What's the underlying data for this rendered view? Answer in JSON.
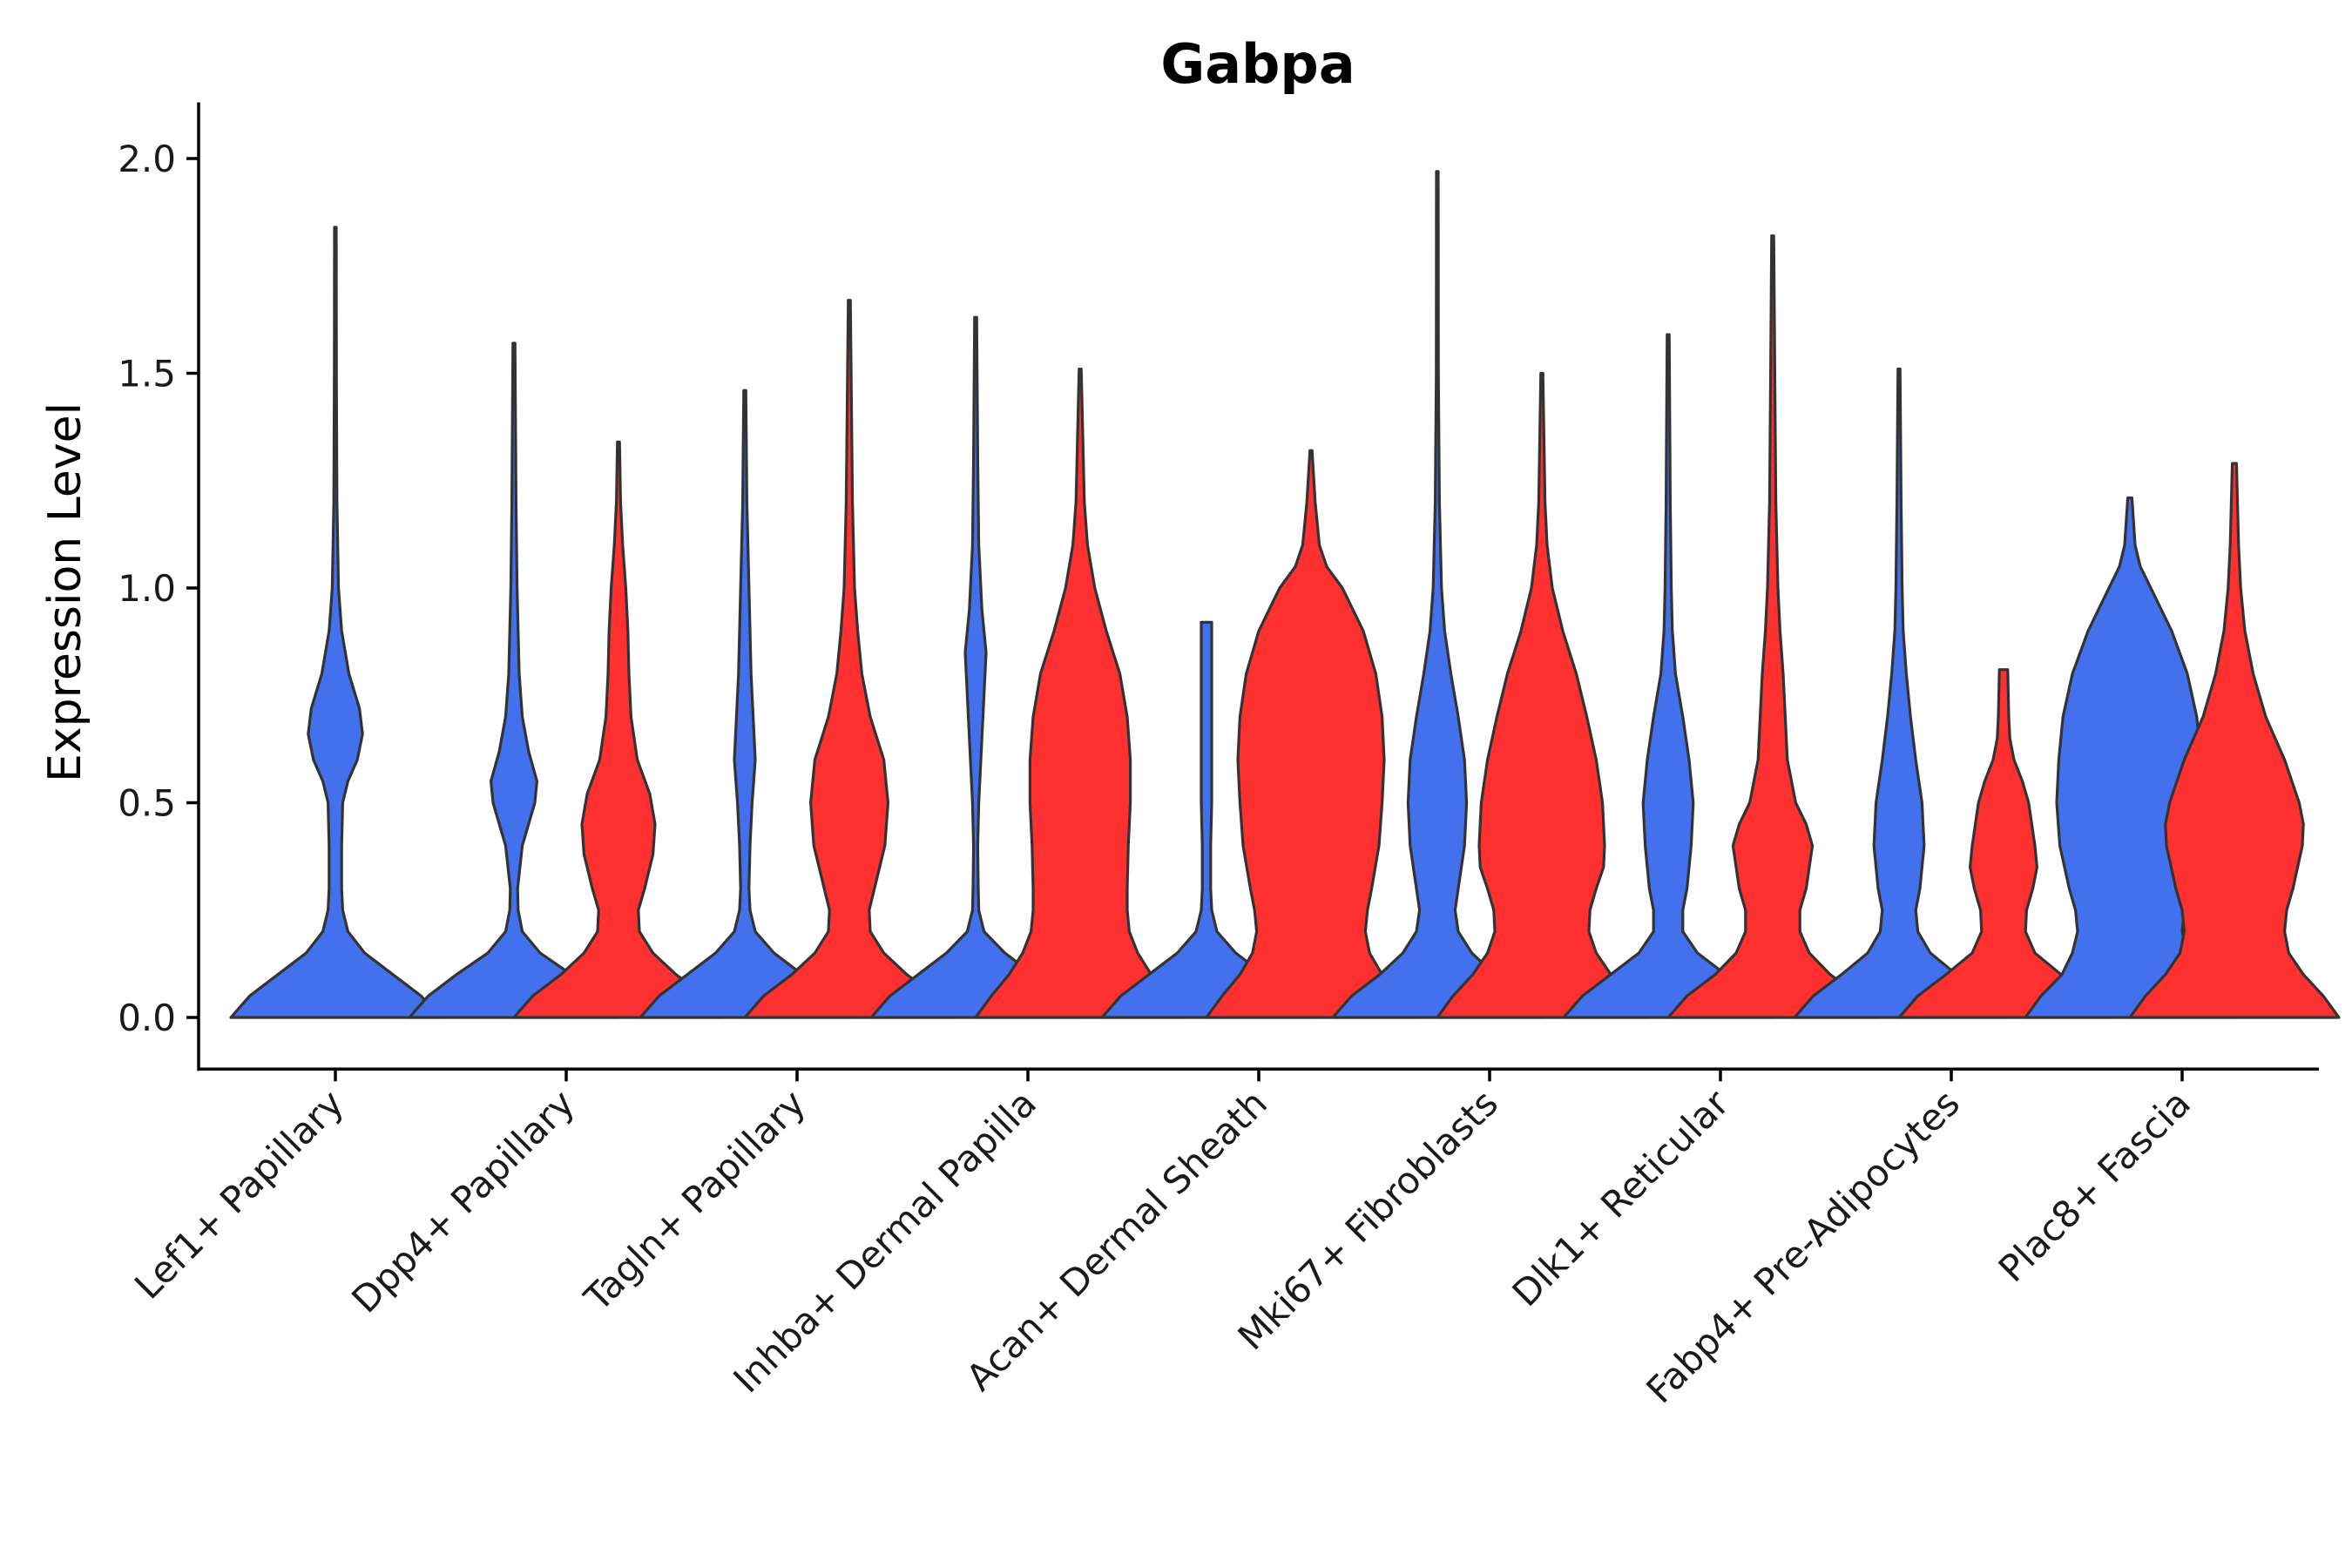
{
  "chart_data": {
    "type": "violin",
    "title": "Gabpa",
    "xlabel": "",
    "ylabel": "Expression Level",
    "ylim": [
      -0.1,
      2.07
    ],
    "yticks": [
      0.0,
      0.5,
      1.0,
      1.5,
      2.0
    ],
    "ytick_labels": [
      "0.0",
      "0.5",
      "1.0",
      "1.5",
      "2.0"
    ],
    "grid": false,
    "colors": {
      "group1": "#4370EC",
      "group2": "#FF3030"
    },
    "categories": [
      "Lef1+ Papillary",
      "Dpp4+ Papillary",
      "Tagln+ Papillary",
      "Inhba+ Dermal Papilla",
      "Acan+ Dermal Sheath",
      "Mki67+ Fibroblasts",
      "Dlk1+ Reticular",
      "Fabp4+ Pre-Adipocytes",
      "Plac8+ Fascia"
    ],
    "series": [
      {
        "name": "group1",
        "max": [
          1.84,
          1.57,
          1.46,
          1.63,
          0.92,
          1.97,
          1.59,
          1.51,
          1.21
        ]
      },
      {
        "name": "group2",
        "max": [
          null,
          1.34,
          1.67,
          1.51,
          1.32,
          1.5,
          1.82,
          0.81,
          1.29
        ]
      }
    ],
    "density_profiles": {
      "group1": [
        [
          [
            0,
            1.0
          ],
          [
            0.05,
            0.82
          ],
          [
            0.1,
            0.55
          ],
          [
            0.15,
            0.28
          ],
          [
            0.2,
            0.12
          ],
          [
            0.25,
            0.07
          ],
          [
            0.3,
            0.06
          ],
          [
            0.4,
            0.06
          ],
          [
            0.5,
            0.07
          ],
          [
            0.55,
            0.12
          ],
          [
            0.6,
            0.21
          ],
          [
            0.66,
            0.26
          ],
          [
            0.72,
            0.23
          ],
          [
            0.8,
            0.13
          ],
          [
            0.9,
            0.06
          ],
          [
            1.0,
            0.03
          ],
          [
            1.2,
            0.015
          ],
          [
            1.5,
            0.01
          ],
          [
            1.84,
            0.008
          ]
        ],
        [
          [
            0,
            1.0
          ],
          [
            0.05,
            0.82
          ],
          [
            0.1,
            0.55
          ],
          [
            0.15,
            0.25
          ],
          [
            0.2,
            0.08
          ],
          [
            0.25,
            0.04
          ],
          [
            0.3,
            0.035
          ],
          [
            0.4,
            0.08
          ],
          [
            0.5,
            0.2
          ],
          [
            0.55,
            0.22
          ],
          [
            0.62,
            0.14
          ],
          [
            0.7,
            0.08
          ],
          [
            0.8,
            0.05
          ],
          [
            1.0,
            0.03
          ],
          [
            1.2,
            0.02
          ],
          [
            1.57,
            0.01
          ]
        ],
        [
          [
            0,
            1.0
          ],
          [
            0.05,
            0.82
          ],
          [
            0.1,
            0.55
          ],
          [
            0.15,
            0.28
          ],
          [
            0.2,
            0.1
          ],
          [
            0.25,
            0.05
          ],
          [
            0.3,
            0.04
          ],
          [
            0.4,
            0.05
          ],
          [
            0.5,
            0.07
          ],
          [
            0.6,
            0.1
          ],
          [
            0.7,
            0.08
          ],
          [
            0.8,
            0.06
          ],
          [
            1.0,
            0.04
          ],
          [
            1.2,
            0.02
          ],
          [
            1.46,
            0.01
          ]
        ],
        [
          [
            0,
            1.0
          ],
          [
            0.05,
            0.82
          ],
          [
            0.1,
            0.55
          ],
          [
            0.15,
            0.28
          ],
          [
            0.2,
            0.08
          ],
          [
            0.25,
            0.03
          ],
          [
            0.3,
            0.025
          ],
          [
            0.4,
            0.02
          ],
          [
            0.5,
            0.03
          ],
          [
            0.6,
            0.05
          ],
          [
            0.7,
            0.07
          ],
          [
            0.85,
            0.1
          ],
          [
            0.95,
            0.06
          ],
          [
            1.1,
            0.03
          ],
          [
            1.3,
            0.02
          ],
          [
            1.63,
            0.01
          ]
        ],
        [
          [
            0,
            1.0
          ],
          [
            0.05,
            0.82
          ],
          [
            0.1,
            0.55
          ],
          [
            0.15,
            0.28
          ],
          [
            0.2,
            0.1
          ],
          [
            0.25,
            0.05
          ],
          [
            0.3,
            0.04
          ],
          [
            0.4,
            0.04
          ],
          [
            0.5,
            0.05
          ],
          [
            0.6,
            0.05
          ],
          [
            0.7,
            0.05
          ],
          [
            0.8,
            0.05
          ],
          [
            0.9,
            0.05
          ],
          [
            0.92,
            0.05
          ]
        ],
        [
          [
            0,
            1.0
          ],
          [
            0.05,
            0.82
          ],
          [
            0.1,
            0.55
          ],
          [
            0.15,
            0.33
          ],
          [
            0.2,
            0.2
          ],
          [
            0.25,
            0.17
          ],
          [
            0.3,
            0.2
          ],
          [
            0.4,
            0.26
          ],
          [
            0.5,
            0.28
          ],
          [
            0.6,
            0.26
          ],
          [
            0.7,
            0.2
          ],
          [
            0.8,
            0.13
          ],
          [
            0.9,
            0.07
          ],
          [
            1.0,
            0.04
          ],
          [
            1.2,
            0.02
          ],
          [
            1.5,
            0.01
          ],
          [
            1.97,
            0.008
          ]
        ],
        [
          [
            0,
            1.0
          ],
          [
            0.05,
            0.82
          ],
          [
            0.1,
            0.55
          ],
          [
            0.15,
            0.28
          ],
          [
            0.2,
            0.14
          ],
          [
            0.25,
            0.14
          ],
          [
            0.3,
            0.18
          ],
          [
            0.4,
            0.22
          ],
          [
            0.5,
            0.24
          ],
          [
            0.6,
            0.2
          ],
          [
            0.7,
            0.14
          ],
          [
            0.8,
            0.07
          ],
          [
            0.9,
            0.04
          ],
          [
            1.0,
            0.03
          ],
          [
            1.2,
            0.02
          ],
          [
            1.59,
            0.01
          ]
        ],
        [
          [
            0,
            1.0
          ],
          [
            0.05,
            0.82
          ],
          [
            0.1,
            0.55
          ],
          [
            0.15,
            0.3
          ],
          [
            0.2,
            0.18
          ],
          [
            0.25,
            0.16
          ],
          [
            0.3,
            0.2
          ],
          [
            0.4,
            0.24
          ],
          [
            0.5,
            0.22
          ],
          [
            0.6,
            0.16
          ],
          [
            0.7,
            0.11
          ],
          [
            0.8,
            0.07
          ],
          [
            0.9,
            0.04
          ],
          [
            1.0,
            0.03
          ],
          [
            1.2,
            0.02
          ],
          [
            1.51,
            0.01
          ]
        ],
        [
          [
            0,
            1.0
          ],
          [
            0.05,
            0.85
          ],
          [
            0.1,
            0.65
          ],
          [
            0.15,
            0.55
          ],
          [
            0.2,
            0.5
          ],
          [
            0.25,
            0.52
          ],
          [
            0.3,
            0.58
          ],
          [
            0.4,
            0.67
          ],
          [
            0.5,
            0.7
          ],
          [
            0.6,
            0.68
          ],
          [
            0.7,
            0.64
          ],
          [
            0.8,
            0.55
          ],
          [
            0.9,
            0.4
          ],
          [
            1.0,
            0.2
          ],
          [
            1.05,
            0.1
          ],
          [
            1.1,
            0.05
          ],
          [
            1.21,
            0.02
          ]
        ]
      ],
      "group2": [
        null,
        [
          [
            0,
            1.0
          ],
          [
            0.05,
            0.82
          ],
          [
            0.1,
            0.55
          ],
          [
            0.15,
            0.33
          ],
          [
            0.2,
            0.2
          ],
          [
            0.25,
            0.19
          ],
          [
            0.3,
            0.25
          ],
          [
            0.38,
            0.33
          ],
          [
            0.45,
            0.35
          ],
          [
            0.52,
            0.3
          ],
          [
            0.6,
            0.18
          ],
          [
            0.7,
            0.12
          ],
          [
            0.8,
            0.1
          ],
          [
            0.9,
            0.09
          ],
          [
            1.0,
            0.07
          ],
          [
            1.1,
            0.04
          ],
          [
            1.2,
            0.02
          ],
          [
            1.34,
            0.01
          ]
        ],
        [
          [
            0,
            1.0
          ],
          [
            0.05,
            0.82
          ],
          [
            0.1,
            0.55
          ],
          [
            0.15,
            0.33
          ],
          [
            0.2,
            0.2
          ],
          [
            0.25,
            0.19
          ],
          [
            0.3,
            0.24
          ],
          [
            0.4,
            0.34
          ],
          [
            0.5,
            0.37
          ],
          [
            0.6,
            0.33
          ],
          [
            0.7,
            0.2
          ],
          [
            0.8,
            0.12
          ],
          [
            0.9,
            0.08
          ],
          [
            1.0,
            0.05
          ],
          [
            1.2,
            0.03
          ],
          [
            1.67,
            0.01
          ]
        ],
        [
          [
            0,
            1.0
          ],
          [
            0.05,
            0.85
          ],
          [
            0.1,
            0.68
          ],
          [
            0.15,
            0.55
          ],
          [
            0.2,
            0.47
          ],
          [
            0.25,
            0.45
          ],
          [
            0.3,
            0.45
          ],
          [
            0.4,
            0.46
          ],
          [
            0.5,
            0.48
          ],
          [
            0.6,
            0.48
          ],
          [
            0.7,
            0.45
          ],
          [
            0.8,
            0.38
          ],
          [
            0.9,
            0.25
          ],
          [
            1.0,
            0.14
          ],
          [
            1.1,
            0.07
          ],
          [
            1.2,
            0.04
          ],
          [
            1.51,
            0.01
          ]
        ],
        [
          [
            0,
            1.0
          ],
          [
            0.05,
            0.85
          ],
          [
            0.1,
            0.68
          ],
          [
            0.15,
            0.56
          ],
          [
            0.2,
            0.52
          ],
          [
            0.25,
            0.54
          ],
          [
            0.3,
            0.58
          ],
          [
            0.4,
            0.65
          ],
          [
            0.5,
            0.68
          ],
          [
            0.6,
            0.7
          ],
          [
            0.7,
            0.68
          ],
          [
            0.8,
            0.62
          ],
          [
            0.9,
            0.5
          ],
          [
            1.0,
            0.3
          ],
          [
            1.05,
            0.15
          ],
          [
            1.1,
            0.08
          ],
          [
            1.2,
            0.04
          ],
          [
            1.32,
            0.01
          ]
        ],
        [
          [
            0,
            1.0
          ],
          [
            0.05,
            0.85
          ],
          [
            0.1,
            0.66
          ],
          [
            0.15,
            0.52
          ],
          [
            0.2,
            0.45
          ],
          [
            0.25,
            0.46
          ],
          [
            0.3,
            0.52
          ],
          [
            0.35,
            0.59
          ],
          [
            0.4,
            0.6
          ],
          [
            0.5,
            0.58
          ],
          [
            0.6,
            0.52
          ],
          [
            0.7,
            0.43
          ],
          [
            0.8,
            0.33
          ],
          [
            0.9,
            0.2
          ],
          [
            1.0,
            0.1
          ],
          [
            1.1,
            0.05
          ],
          [
            1.2,
            0.03
          ],
          [
            1.5,
            0.01
          ]
        ],
        [
          [
            0,
            1.0
          ],
          [
            0.05,
            0.82
          ],
          [
            0.1,
            0.55
          ],
          [
            0.15,
            0.35
          ],
          [
            0.2,
            0.26
          ],
          [
            0.25,
            0.26
          ],
          [
            0.3,
            0.32
          ],
          [
            0.4,
            0.38
          ],
          [
            0.45,
            0.32
          ],
          [
            0.5,
            0.22
          ],
          [
            0.6,
            0.14
          ],
          [
            0.7,
            0.12
          ],
          [
            0.8,
            0.1
          ],
          [
            0.9,
            0.07
          ],
          [
            1.0,
            0.05
          ],
          [
            1.2,
            0.03
          ],
          [
            1.5,
            0.02
          ],
          [
            1.82,
            0.01
          ]
        ],
        [
          [
            0,
            1.0
          ],
          [
            0.05,
            0.82
          ],
          [
            0.1,
            0.55
          ],
          [
            0.15,
            0.3
          ],
          [
            0.2,
            0.21
          ],
          [
            0.25,
            0.22
          ],
          [
            0.3,
            0.28
          ],
          [
            0.35,
            0.32
          ],
          [
            0.4,
            0.3
          ],
          [
            0.5,
            0.24
          ],
          [
            0.55,
            0.18
          ],
          [
            0.6,
            0.1
          ],
          [
            0.65,
            0.06
          ],
          [
            0.7,
            0.05
          ],
          [
            0.81,
            0.04
          ]
        ],
        [
          [
            0,
            1.0
          ],
          [
            0.05,
            0.85
          ],
          [
            0.1,
            0.66
          ],
          [
            0.15,
            0.52
          ],
          [
            0.2,
            0.48
          ],
          [
            0.25,
            0.5
          ],
          [
            0.3,
            0.56
          ],
          [
            0.4,
            0.65
          ],
          [
            0.45,
            0.66
          ],
          [
            0.5,
            0.62
          ],
          [
            0.6,
            0.48
          ],
          [
            0.7,
            0.3
          ],
          [
            0.8,
            0.18
          ],
          [
            0.9,
            0.1
          ],
          [
            1.0,
            0.06
          ],
          [
            1.1,
            0.04
          ],
          [
            1.29,
            0.02
          ]
        ]
      ]
    }
  }
}
